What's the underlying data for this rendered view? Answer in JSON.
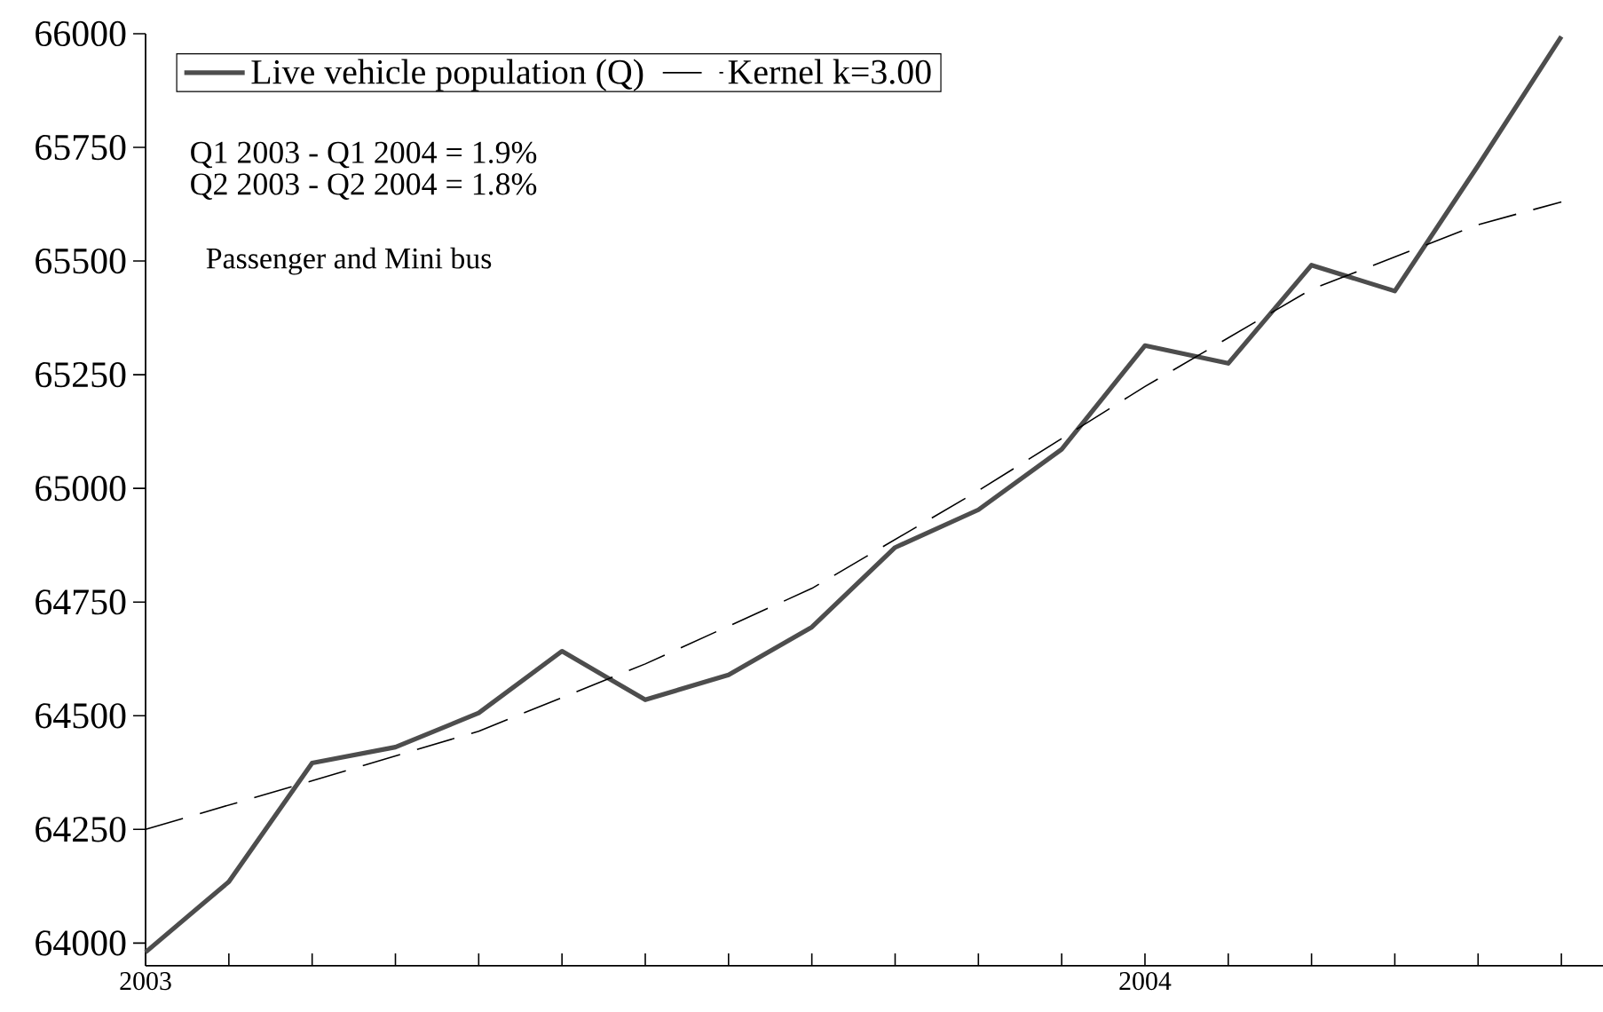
{
  "chart_data": {
    "type": "line",
    "x": [
      "2003-01",
      "2003-02",
      "2003-03",
      "2003-04",
      "2003-05",
      "2003-06",
      "2003-07",
      "2003-08",
      "2003-09",
      "2003-10",
      "2003-11",
      "2003-12",
      "2004-01",
      "2004-02",
      "2004-03",
      "2004-04",
      "2004-05",
      "2004-06"
    ],
    "series": [
      {
        "name": "Live vehicle population (Q)",
        "color": "#4d4d4d",
        "line_style": "solid",
        "values": [
          63980,
          64135,
          64396,
          64431,
          64506,
          64642,
          64535,
          64590,
          64695,
          64870,
          64953,
          65086,
          65314,
          65275,
          65491,
          65434,
          65710,
          65994
        ]
      },
      {
        "name": "Kernel k=3.00",
        "color": "#000000",
        "line_style": "dashed",
        "x": [
          "2003-01",
          "2003-03",
          "2003-05",
          "2003-07",
          "2003-09",
          "2003-11",
          "2004-01",
          "2004-03",
          "2004-05",
          "2004-06"
        ],
        "values": [
          64250,
          64357,
          64466,
          64614,
          64780,
          64995,
          65224,
          65438,
          65580,
          65630
        ]
      }
    ],
    "xlim": [
      "2003-01",
      "2004-06-16"
    ],
    "xticks": [
      {
        "value": "2003-01",
        "label": "2003"
      },
      {
        "value": "2003-02",
        "label": null
      },
      {
        "value": "2003-03",
        "label": null
      },
      {
        "value": "2003-04",
        "label": null
      },
      {
        "value": "2003-05",
        "label": null
      },
      {
        "value": "2003-06",
        "label": null
      },
      {
        "value": "2003-07",
        "label": null
      },
      {
        "value": "2003-08",
        "label": null
      },
      {
        "value": "2003-09",
        "label": null
      },
      {
        "value": "2003-10",
        "label": null
      },
      {
        "value": "2003-11",
        "label": null
      },
      {
        "value": "2003-12",
        "label": null
      },
      {
        "value": "2004-01",
        "label": "2004"
      },
      {
        "value": "2004-02",
        "label": null
      },
      {
        "value": "2004-03",
        "label": null
      },
      {
        "value": "2004-04",
        "label": null
      },
      {
        "value": "2004-05",
        "label": null
      },
      {
        "value": "2004-06",
        "label": null
      }
    ],
    "ylim": [
      63950,
      66000
    ],
    "yticks": [
      64000,
      64250,
      64500,
      64750,
      65000,
      65250,
      65500,
      65750,
      66000
    ],
    "legend": "top left",
    "grid": false,
    "annotations": [
      "Q1 2003 - Q1 2004 = 1.9%",
      "Q2 2003 - Q2 2004 = 1.8%",
      "Passenger and Mini bus"
    ]
  }
}
